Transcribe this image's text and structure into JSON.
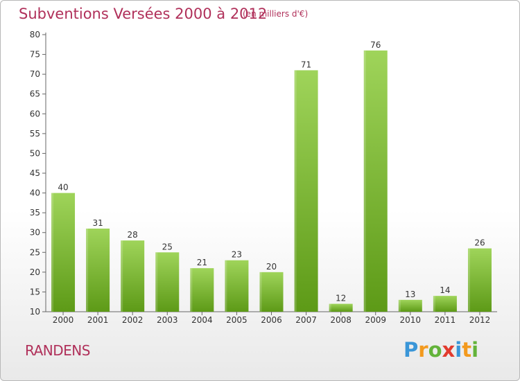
{
  "header": {
    "title": "Subventions Versées 2000 à 2012",
    "unit": "(en milliers d'€)"
  },
  "commune": "RANDENS",
  "logo": {
    "text": "Proxiti"
  },
  "colors": {
    "bar_top": "#9fd45a",
    "bar_bottom": "#5d9a17",
    "title": "#b0305a"
  },
  "chart_data": {
    "type": "bar",
    "title": "Subventions Versées 2000 à 2012",
    "ylabel": "",
    "xlabel": "",
    "categories": [
      "2000",
      "2001",
      "2002",
      "2003",
      "2004",
      "2005",
      "2006",
      "2007",
      "2008",
      "2009",
      "2010",
      "2011",
      "2012"
    ],
    "values": [
      40,
      31,
      28,
      25,
      21,
      23,
      20,
      71,
      12,
      76,
      13,
      14,
      26
    ],
    "ylim": [
      10,
      80
    ],
    "yticks": [
      10,
      15,
      20,
      25,
      30,
      35,
      40,
      45,
      50,
      55,
      60,
      65,
      70,
      75,
      80
    ],
    "grid": false
  }
}
